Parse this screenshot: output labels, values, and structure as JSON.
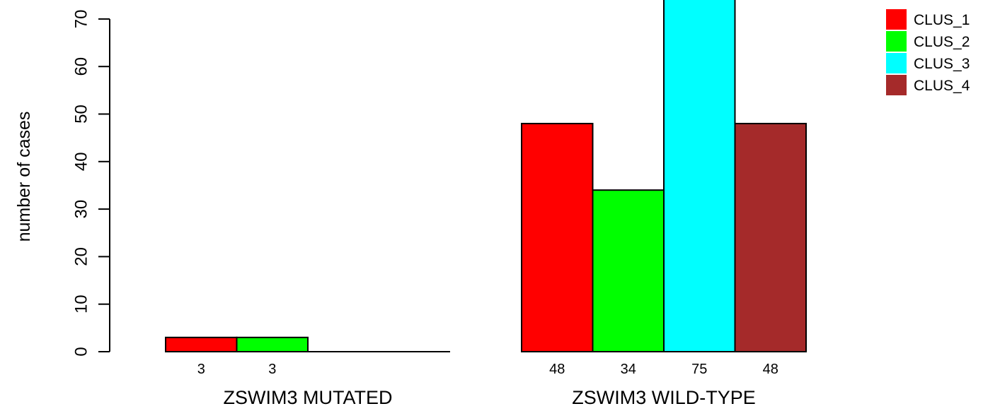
{
  "chart_data": {
    "type": "bar",
    "ylabel": "number of cases",
    "ylim": [
      0,
      75
    ],
    "yticks": [
      0,
      10,
      20,
      30,
      40,
      50,
      60,
      70
    ],
    "groups": [
      {
        "label": "ZSWIM3 MUTATED",
        "values": [
          3,
          3,
          0,
          0
        ],
        "labels": [
          "3",
          "3",
          "",
          ""
        ]
      },
      {
        "label": "ZSWIM3 WILD-TYPE",
        "values": [
          48,
          34,
          75,
          48
        ],
        "labels": [
          "48",
          "34",
          "75",
          "48"
        ]
      }
    ],
    "series": [
      {
        "name": "CLUS_1",
        "color": "#ff0000"
      },
      {
        "name": "CLUS_2",
        "color": "#00ff00"
      },
      {
        "name": "CLUS_3",
        "color": "#00ffff"
      },
      {
        "name": "CLUS_4",
        "color": "#a52a2a"
      }
    ],
    "legend_position": "top-right"
  }
}
